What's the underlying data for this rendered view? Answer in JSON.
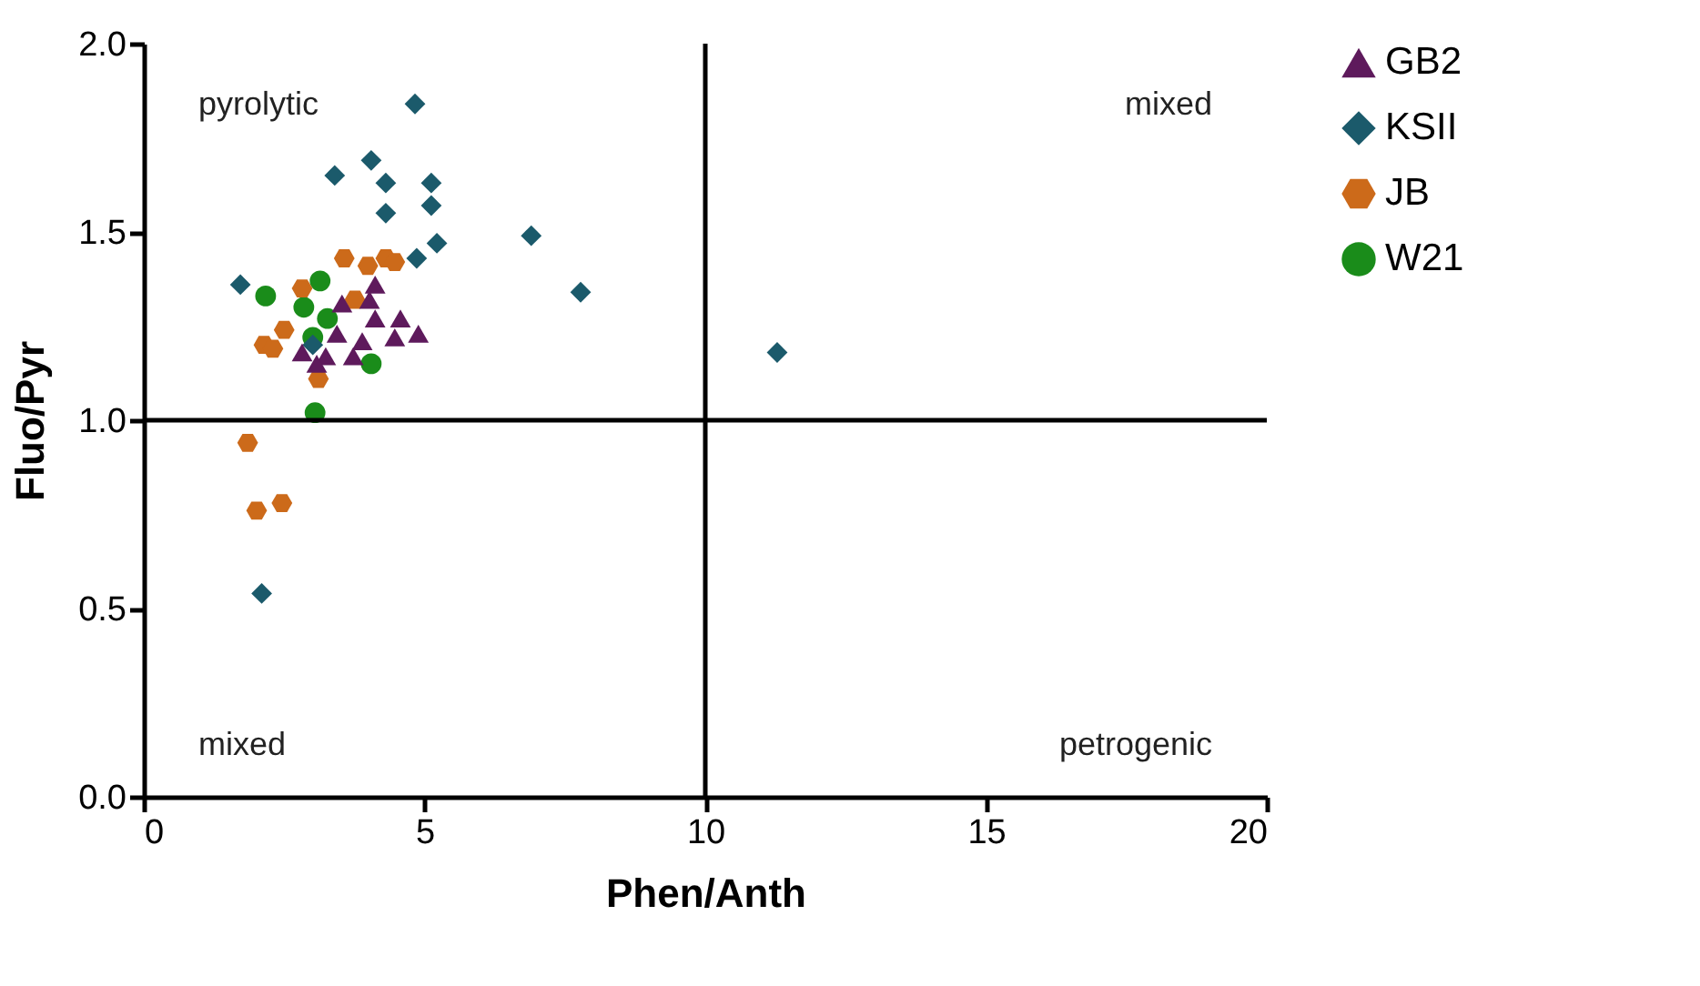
{
  "chart_data": {
    "type": "scatter",
    "xlabel": "Phen/Anth",
    "ylabel": "Fluo/Pyr",
    "xlim": [
      0,
      20
    ],
    "xticks": [
      0,
      5,
      10,
      15,
      20
    ],
    "ylim": [
      0,
      2
    ],
    "yticks": [
      {
        "value": 0,
        "label": "0.0"
      },
      {
        "value": 0.5,
        "label": "0.5"
      },
      {
        "value": 1,
        "label": "1.0"
      },
      {
        "value": 1.5,
        "label": "1.5"
      },
      {
        "value": 2,
        "label": "2.0"
      }
    ],
    "grid": false,
    "legend": "right",
    "ref_lines": [
      {
        "axis": "x",
        "value": 10,
        "color": "#000000"
      },
      {
        "axis": "y",
        "value": 1,
        "color": "#000000"
      }
    ],
    "annotations": [
      "pyrolytic",
      "mixed",
      "mixed",
      "petrogenic"
    ],
    "series": [
      {
        "name": "GB2",
        "color": "#5e1a5c",
        "marker": "triangle",
        "x": [
          4.12,
          3.53,
          4.02,
          4.12,
          4.57,
          3.44,
          4.89,
          4.47,
          3.89,
          2.82,
          3.24,
          3.73,
          3.08
        ],
        "values": [
          1.36,
          1.31,
          1.32,
          1.27,
          1.27,
          1.23,
          1.23,
          1.22,
          1.21,
          1.18,
          1.17,
          1.17,
          1.15
        ]
      },
      {
        "name": "KSII",
        "color": "#1b5a6b",
        "marker": "diamond",
        "x": [
          4.83,
          3.4,
          4.05,
          4.31,
          5.12,
          5.12,
          4.31,
          5.22,
          4.86,
          6.9,
          7.78,
          1.72,
          3.01,
          11.28,
          2.1
        ],
        "values": [
          1.84,
          1.65,
          1.69,
          1.63,
          1.63,
          1.57,
          1.55,
          1.47,
          1.43,
          1.49,
          1.34,
          1.36,
          1.2,
          1.18,
          0.54
        ]
      },
      {
        "name": "JB",
        "color": "#cc6a1a",
        "x": [
          3.57,
          3.99,
          4.31,
          4.47,
          2.82,
          3.76,
          2.5,
          2.14,
          2.3,
          3.11,
          1.85,
          2.01,
          2.46
        ],
        "values": [
          1.43,
          1.41,
          1.43,
          1.42,
          1.35,
          1.32,
          1.24,
          1.2,
          1.19,
          1.11,
          0.94,
          0.76,
          0.78
        ]
      },
      {
        "name": "W21",
        "color": "#1a8c1a",
        "marker": "circle",
        "x": [
          2.17,
          3.14,
          2.85,
          3.27,
          3.01,
          4.05,
          3.05
        ],
        "values": [
          1.33,
          1.37,
          1.3,
          1.27,
          1.22,
          1.15,
          1.02
        ]
      }
    ]
  }
}
